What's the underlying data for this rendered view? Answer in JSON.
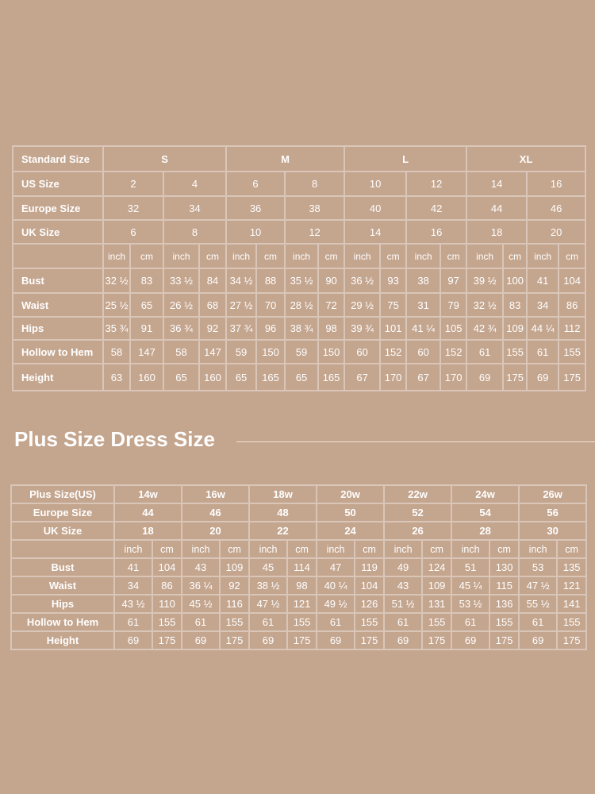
{
  "colors": {
    "background": "#c4a58e",
    "text": "#ffffff",
    "grid": "#d9c6b8"
  },
  "standard_table": {
    "header_label": "Standard Size",
    "groups": [
      "S",
      "M",
      "L",
      "XL"
    ],
    "rows": [
      {
        "label": "US Size",
        "values": [
          "2",
          "4",
          "6",
          "8",
          "10",
          "12",
          "14",
          "16"
        ]
      },
      {
        "label": "Europe Size",
        "values": [
          "32",
          "34",
          "36",
          "38",
          "40",
          "42",
          "44",
          "46"
        ]
      },
      {
        "label": "UK Size",
        "values": [
          "6",
          "8",
          "10",
          "12",
          "14",
          "16",
          "18",
          "20"
        ]
      }
    ],
    "units": [
      "inch",
      "cm"
    ],
    "measurements": [
      {
        "label": "Bust",
        "values": [
          "32 ½",
          "83",
          "33 ½",
          "84",
          "34 ½",
          "88",
          "35 ½",
          "90",
          "36 ½",
          "93",
          "38",
          "97",
          "39 ½",
          "100",
          "41",
          "104"
        ]
      },
      {
        "label": "Waist",
        "values": [
          "25 ½",
          "65",
          "26 ½",
          "68",
          "27 ½",
          "70",
          "28 ½",
          "72",
          "29 ½",
          "75",
          "31",
          "79",
          "32 ½",
          "83",
          "34",
          "86"
        ]
      },
      {
        "label": "Hips",
        "values": [
          "35 ¾",
          "91",
          "36 ¾",
          "92",
          "37 ¾",
          "96",
          "38 ¾",
          "98",
          "39 ¾",
          "101",
          "41 ¼",
          "105",
          "42 ¾",
          "109",
          "44 ¼",
          "112"
        ]
      },
      {
        "label": "Hollow to Hem",
        "values": [
          "58",
          "147",
          "58",
          "147",
          "59",
          "150",
          "59",
          "150",
          "60",
          "152",
          "60",
          "152",
          "61",
          "155",
          "61",
          "155"
        ]
      },
      {
        "label": "Height",
        "values": [
          "63",
          "160",
          "65",
          "160",
          "65",
          "165",
          "65",
          "165",
          "67",
          "170",
          "67",
          "170",
          "69",
          "175",
          "69",
          "175"
        ]
      }
    ]
  },
  "plus_section": {
    "title": "Plus Size Dress Size"
  },
  "plus_table": {
    "rows": [
      {
        "label": "Plus Size(US)",
        "values": [
          "14w",
          "16w",
          "18w",
          "20w",
          "22w",
          "24w",
          "26w"
        ]
      },
      {
        "label": "Europe Size",
        "values": [
          "44",
          "46",
          "48",
          "50",
          "52",
          "54",
          "56"
        ]
      },
      {
        "label": "UK Size",
        "values": [
          "18",
          "20",
          "22",
          "24",
          "26",
          "28",
          "30"
        ]
      }
    ],
    "units": [
      "inch",
      "cm"
    ],
    "measurements": [
      {
        "label": "Bust",
        "values": [
          "41",
          "104",
          "43",
          "109",
          "45",
          "114",
          "47",
          "119",
          "49",
          "124",
          "51",
          "130",
          "53",
          "135"
        ]
      },
      {
        "label": "Waist",
        "values": [
          "34",
          "86",
          "36 ¼",
          "92",
          "38 ½",
          "98",
          "40 ¼",
          "104",
          "43",
          "109",
          "45 ¼",
          "115",
          "47 ½",
          "121"
        ]
      },
      {
        "label": "Hips",
        "values": [
          "43 ½",
          "110",
          "45 ½",
          "116",
          "47 ½",
          "121",
          "49 ½",
          "126",
          "51 ½",
          "131",
          "53 ½",
          "136",
          "55 ½",
          "141"
        ]
      },
      {
        "label": "Hollow to Hem",
        "values": [
          "61",
          "155",
          "61",
          "155",
          "61",
          "155",
          "61",
          "155",
          "61",
          "155",
          "61",
          "155",
          "61",
          "155"
        ]
      },
      {
        "label": "Height",
        "values": [
          "69",
          "175",
          "69",
          "175",
          "69",
          "175",
          "69",
          "175",
          "69",
          "175",
          "69",
          "175",
          "69",
          "175"
        ]
      }
    ]
  }
}
